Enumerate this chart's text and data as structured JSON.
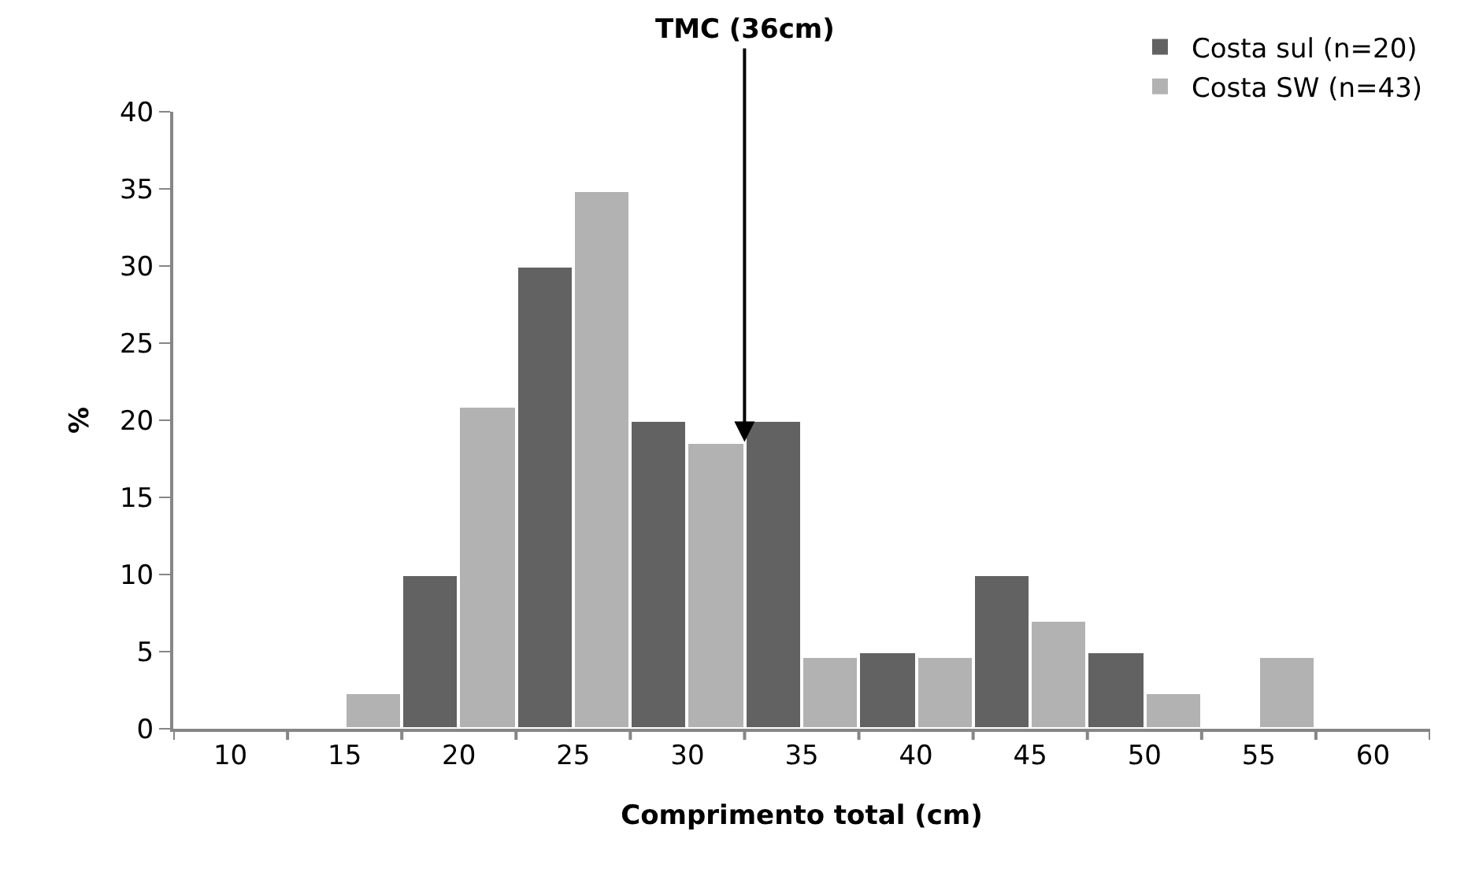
{
  "chart_data": {
    "type": "bar",
    "xlabel": "Comprimento total (cm)",
    "ylabel": "%",
    "categories": [
      "10",
      "15",
      "20",
      "25",
      "30",
      "35",
      "40",
      "45",
      "50",
      "55",
      "60"
    ],
    "series": [
      {
        "name": "Costa sul (n=20)",
        "color": "#626262",
        "values": [
          null,
          null,
          10,
          30,
          20,
          20,
          5,
          10,
          5,
          null,
          null
        ]
      },
      {
        "name": "Costa SW (n=43)",
        "color": "#b2b2b2",
        "values": [
          null,
          2.3,
          20.9,
          34.9,
          18.6,
          4.7,
          4.7,
          7.0,
          2.3,
          4.7,
          null
        ]
      }
    ],
    "annotations": [
      {
        "text": "TMC (36cm)",
        "y": 18.6
      }
    ],
    "ylim": [
      0,
      40
    ],
    "yticks": [
      0,
      5,
      10,
      15,
      20,
      25,
      30,
      35,
      40
    ],
    "legend": "top right"
  }
}
